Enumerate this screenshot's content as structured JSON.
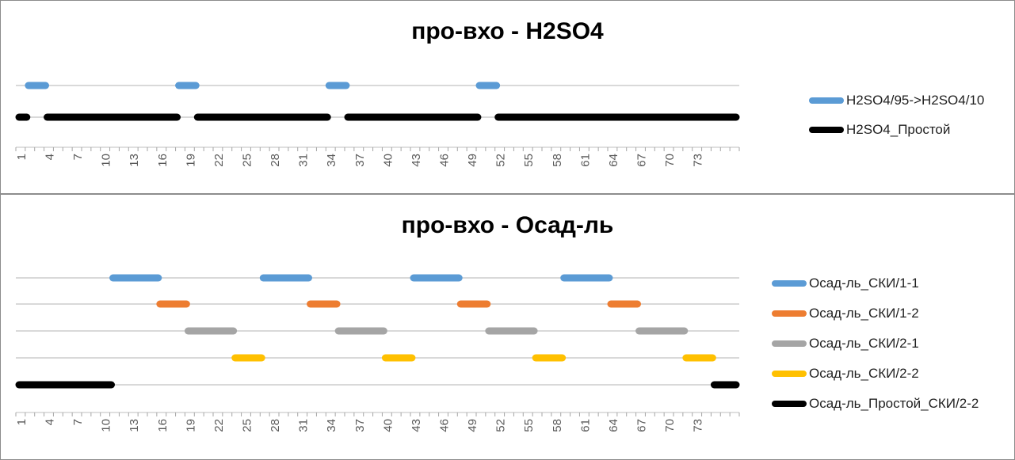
{
  "charts": [
    {
      "title": "про-вхо - H2SO4",
      "chart_data": {
        "type": "gantt",
        "title": "про-вхо - H2SO4",
        "x_tick_labels": [
          "1",
          "4",
          "7",
          "10",
          "13",
          "16",
          "19",
          "22",
          "25",
          "28",
          "31",
          "34",
          "37",
          "40",
          "43",
          "46",
          "49",
          "52",
          "55",
          "58",
          "61",
          "64",
          "67",
          "70",
          "73"
        ],
        "xlim": [
          0,
          77
        ],
        "series": [
          {
            "name": "H2SO4/95->H2SO4/10",
            "color": "#5b9bd5",
            "segments": [
              [
                1,
                3.5
              ],
              [
                17,
                19.5
              ],
              [
                33,
                35.5
              ],
              [
                49,
                51.5
              ]
            ]
          },
          {
            "name": "H2SO4_Простой",
            "color": "#000000",
            "segments": [
              [
                0,
                1.5
              ],
              [
                3,
                17.5
              ],
              [
                19,
                33.5
              ],
              [
                35,
                49.5
              ],
              [
                51,
                77
              ]
            ]
          }
        ]
      }
    },
    {
      "title": "про-вхо - Осад-ль",
      "chart_data": {
        "type": "gantt",
        "title": "про-вхо - Осад-ль",
        "x_tick_labels": [
          "1",
          "4",
          "7",
          "10",
          "13",
          "16",
          "19",
          "22",
          "25",
          "28",
          "31",
          "34",
          "37",
          "40",
          "43",
          "46",
          "49",
          "52",
          "55",
          "58",
          "61",
          "64",
          "67",
          "70",
          "73"
        ],
        "xlim": [
          0,
          77
        ],
        "series": [
          {
            "name": "Осад-ль_СКИ/1-1",
            "color": "#5b9bd5",
            "segments": [
              [
                10,
                15.5
              ],
              [
                26,
                31.5
              ],
              [
                42,
                47.5
              ],
              [
                58,
                63.5
              ]
            ]
          },
          {
            "name": "Осад-ль_СКИ/1-2",
            "color": "#ed7d31",
            "segments": [
              [
                15,
                18.5
              ],
              [
                31,
                34.5
              ],
              [
                47,
                50.5
              ],
              [
                63,
                66.5
              ]
            ]
          },
          {
            "name": "Осад-ль_СКИ/2-1",
            "color": "#a5a5a5",
            "segments": [
              [
                18,
                23.5
              ],
              [
                34,
                39.5
              ],
              [
                50,
                55.5
              ],
              [
                66,
                71.5
              ]
            ]
          },
          {
            "name": "Осад-ль_СКИ/2-2",
            "color": "#ffc000",
            "segments": [
              [
                23,
                26.5
              ],
              [
                39,
                42.5
              ],
              [
                55,
                58.5
              ],
              [
                71,
                74.5
              ]
            ]
          },
          {
            "name": "Осад-ль_Простой_СКИ/2-2",
            "color": "#000000",
            "segments": [
              [
                0,
                10.5
              ],
              [
                74,
                77
              ]
            ]
          }
        ]
      }
    }
  ]
}
